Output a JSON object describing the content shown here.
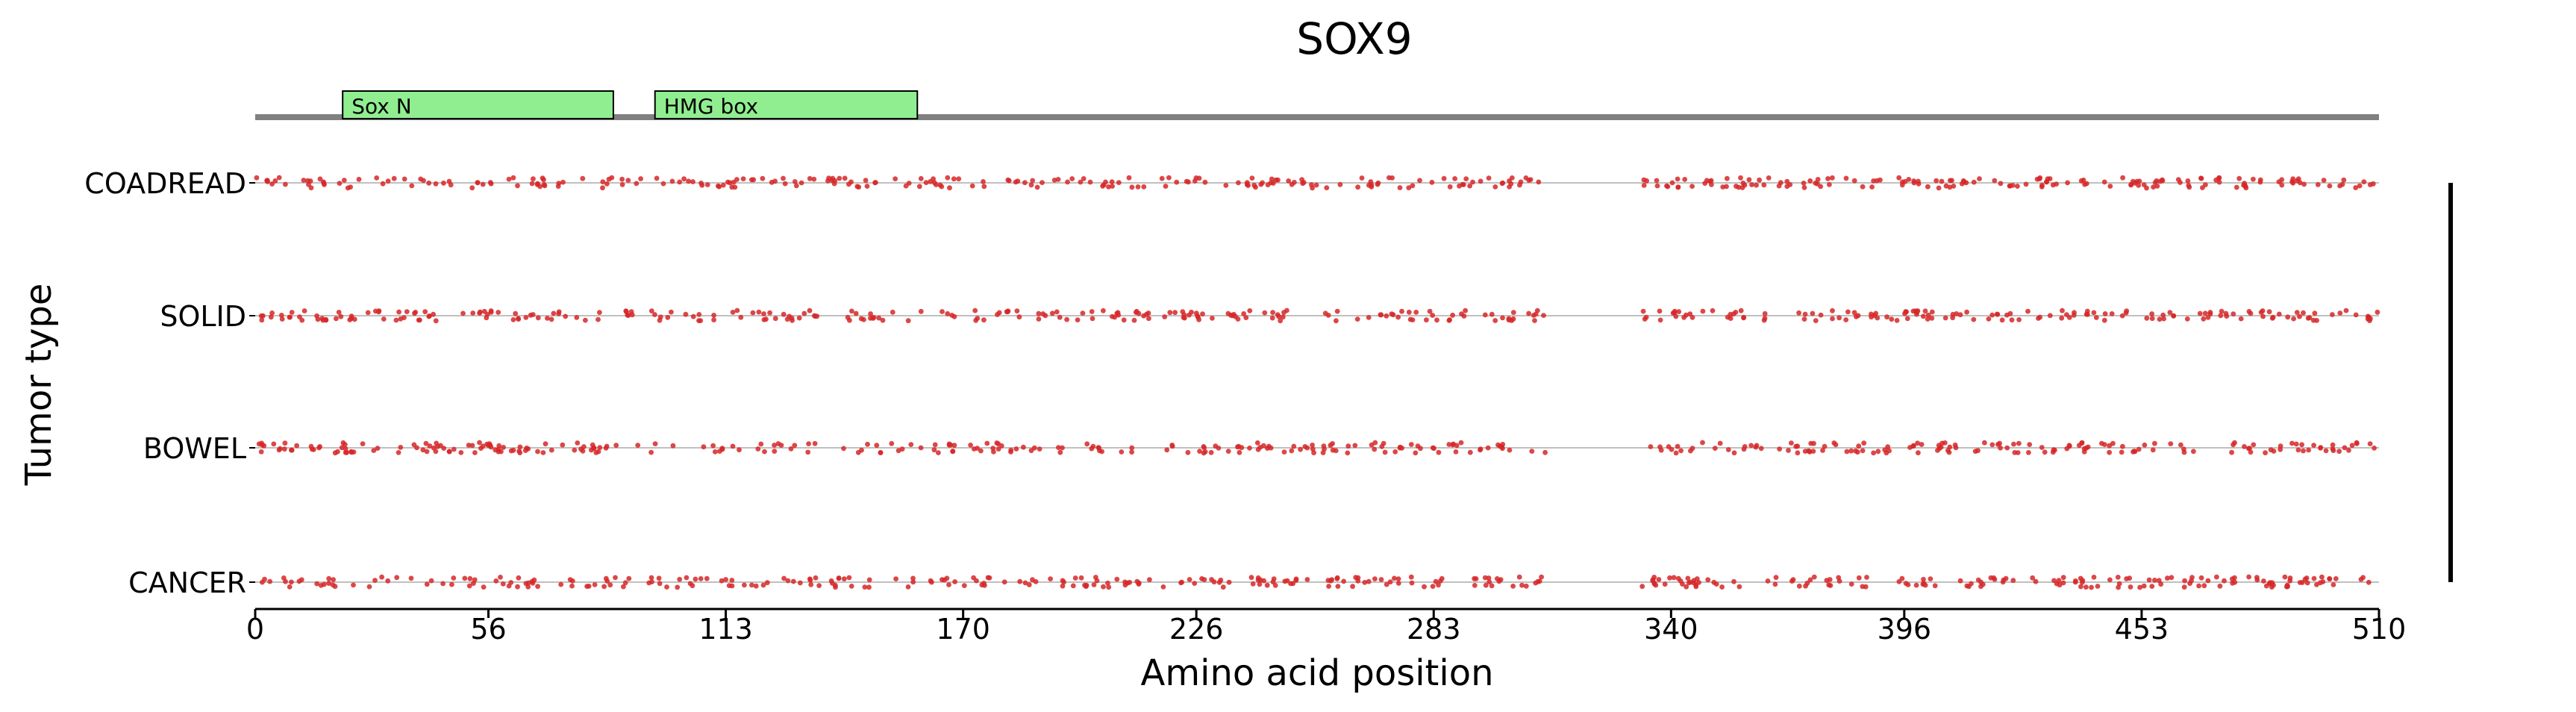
{
  "chart_data": {
    "type": "scatter",
    "title": "SOX9",
    "xlabel": "Amino acid position",
    "ylabel": "Tumor type",
    "xlim": [
      0,
      510
    ],
    "x_ticks": [
      0,
      56,
      113,
      170,
      226,
      283,
      340,
      396,
      453,
      510
    ],
    "categories": [
      "COADREAD",
      "SOLID",
      "BOWEL",
      "CANCER"
    ],
    "domains": [
      {
        "name": "Sox_N",
        "start": 21,
        "end": 86
      },
      {
        "name": "HMG_box",
        "start": 96,
        "end": 159
      }
    ],
    "point_color": "#d62728",
    "protein_line_color": "#808080",
    "row_line_color": "#c0c0c0",
    "domain_color": "#90ee90",
    "gap_regions": [
      [
        310,
        333
      ]
    ],
    "points_per_row": 420
  }
}
